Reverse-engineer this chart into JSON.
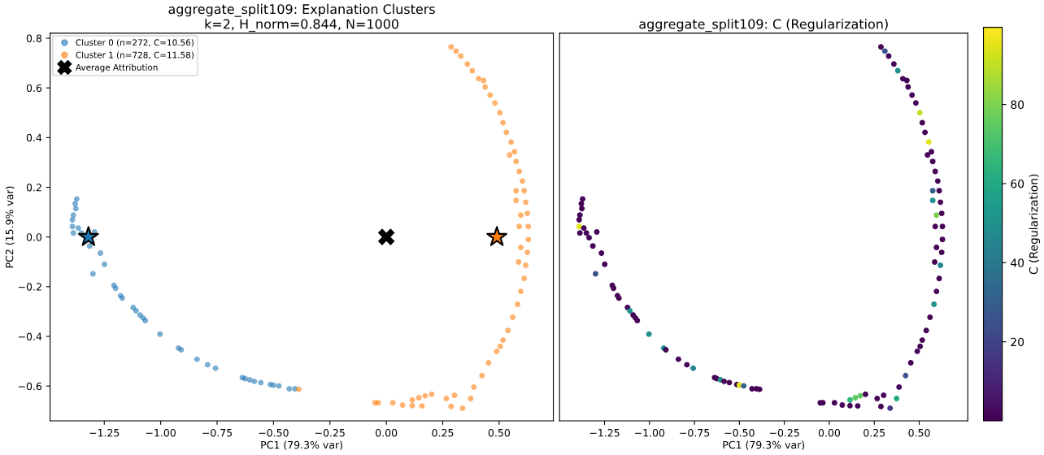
{
  "chart_data": [
    {
      "type": "scatter",
      "title": "aggregate_split109: Explanation Clusters\nk=2, H_norm=0.844, N=1000",
      "xlabel": "PC1 (79.3% var)",
      "ylabel": "PC2 (15.9% var)",
      "xlim": [
        -1.49,
        0.74
      ],
      "ylim": [
        -0.74,
        0.82
      ],
      "xticks": [
        {
          "value": -1.25,
          "label": "−1.25"
        },
        {
          "value": -1.0,
          "label": "−1.00"
        },
        {
          "value": -0.75,
          "label": "−0.75"
        },
        {
          "value": -0.5,
          "label": "−0.50"
        },
        {
          "value": -0.25,
          "label": "−0.25"
        },
        {
          "value": 0.0,
          "label": "0.00"
        },
        {
          "value": 0.25,
          "label": "0.25"
        },
        {
          "value": 0.5,
          "label": "0.50"
        }
      ],
      "yticks": [
        {
          "value": -0.6,
          "label": "−0.6"
        },
        {
          "value": -0.4,
          "label": "−0.4"
        },
        {
          "value": -0.2,
          "label": "−0.2"
        },
        {
          "value": 0.0,
          "label": "0.0"
        },
        0.2,
        0.4,
        0.6,
        0.8
      ],
      "grid": false,
      "legend": "top left",
      "series": [
        {
          "name": "Cluster 0 (n=272, C=10.56)",
          "color": "#1f77b4",
          "marker": "circle",
          "x": [
            -1.372,
            -1.379,
            -1.376,
            -1.387,
            -1.391,
            -1.391,
            -1.387,
            -1.365,
            -1.351,
            -1.336,
            -1.293,
            -1.315,
            -1.267,
            -1.249,
            -1.3,
            -1.207,
            -1.2,
            -1.178,
            -1.17,
            -1.122,
            -1.109,
            -1.091,
            -1.078,
            -1.068,
            -1.003,
            -0.921,
            -0.909,
            -0.839,
            -0.792,
            -0.757,
            -0.638,
            -0.626,
            -0.605,
            -0.585,
            -0.556,
            -0.514,
            -0.5,
            -0.476,
            -0.43,
            -0.405
          ],
          "values": [
            0.153,
            0.134,
            0.114,
            0.088,
            0.069,
            0.042,
            0.016,
            0.036,
            0.016,
            null,
            0.02,
            -0.036,
            -0.065,
            -0.11,
            -0.148,
            -0.195,
            -0.206,
            -0.236,
            -0.246,
            -0.284,
            -0.297,
            -0.314,
            -0.326,
            -0.336,
            -0.391,
            -0.447,
            -0.454,
            -0.492,
            -0.514,
            -0.528,
            -0.566,
            -0.57,
            -0.575,
            -0.581,
            -0.586,
            -0.594,
            -0.596,
            -0.599,
            -0.611,
            -0.611
          ]
        },
        {
          "name": "Cluster 1 (n=728, C=11.58)",
          "color": "#ff7f0e",
          "marker": "circle",
          "x": [
            0.287,
            0.309,
            0.33,
            0.359,
            0.381,
            0.409,
            0.438,
            0.431,
            0.46,
            0.481,
            0.503,
            0.517,
            0.532,
            0.553,
            0.546,
            0.568,
            0.575,
            0.589,
            0.603,
            0.575,
            0.611,
            0.575,
            0.618,
            0.625,
            0.596,
            0.589,
            0.629,
            0.629,
            0.596,
            0.625,
            0.586,
            0.618,
            0.611,
            0.596,
            0.582,
            0.56,
            0.539,
            0.517,
            0.505,
            0.489,
            0.453,
            0.424,
            0.388,
            0.374,
            0.338,
            0.287,
            0.302,
            0.266,
            0.201,
            0.172,
            0.158,
            0.144,
            0.115,
            0.115,
            0.072,
            0.029,
            -0.036,
            -0.05,
            -0.388
          ],
          "values": [
            0.765,
            0.748,
            0.728,
            0.696,
            0.669,
            0.637,
            0.604,
            0.63,
            0.571,
            0.539,
            0.5,
            0.46,
            0.421,
            0.382,
            0.33,
            0.343,
            0.304,
            0.264,
            0.225,
            0.186,
            0.186,
            0.147,
            0.14,
            0.095,
            0.088,
            0.042,
            0.042,
            -0.01,
            -0.042,
            -0.062,
            -0.101,
            -0.114,
            -0.167,
            -0.219,
            -0.271,
            -0.323,
            -0.376,
            -0.415,
            -0.44,
            -0.46,
            -0.506,
            -0.558,
            -0.604,
            -0.65,
            -0.689,
            -0.682,
            -0.637,
            -0.65,
            -0.633,
            -0.639,
            -0.68,
            -0.647,
            -0.656,
            -0.679,
            -0.676,
            -0.667,
            -0.667,
            -0.667,
            -0.613
          ]
        },
        {
          "color": "#1f77b4",
          "marker": "star",
          "x": [
            -1.32
          ],
          "values": [
            0.0
          ]
        },
        {
          "color": "#ff7f0e",
          "marker": "star",
          "x": [
            0.49
          ],
          "values": [
            0.0
          ]
        },
        {
          "name": "Average Attribution",
          "color": "#000000",
          "marker": "cross",
          "x": [
            0.0
          ],
          "values": [
            0.0
          ]
        }
      ]
    },
    {
      "type": "scatter",
      "title": "aggregate_split109: C (Regularization)",
      "xlabel": "PC1 (79.3% var)",
      "clabel": "C (Regularization)",
      "xlim": [
        -1.5,
        0.77
      ],
      "ylim": [
        -0.74,
        0.82
      ],
      "tick_labels": "x",
      "grid": false,
      "xticks": [
        {
          "value": -1.25,
          "label": "−1.25"
        },
        {
          "value": -1.0,
          "label": "−1.00"
        },
        {
          "value": -0.75,
          "label": "−0.75"
        },
        {
          "value": -0.5,
          "label": "−0.50"
        },
        {
          "value": -0.25,
          "label": "−0.25"
        },
        {
          "value": 0.0,
          "label": "0.00"
        },
        {
          "value": 0.25,
          "label": "0.25"
        },
        {
          "value": 0.5,
          "label": "0.50"
        }
      ],
      "clim": [
        0.01,
        99.5
      ],
      "cticks": [
        20,
        40,
        60,
        80
      ],
      "series": [
        {
          "x": [
            -1.372,
            -1.379,
            -1.376,
            -1.387,
            -1.391,
            -1.391,
            -1.387,
            -1.365,
            -1.351,
            -1.336,
            -1.293,
            -1.315,
            -1.267,
            -1.249,
            -1.3,
            -1.207,
            -1.2,
            -1.178,
            -1.17,
            -1.122,
            -1.109,
            -1.091,
            -1.078,
            -1.068,
            -1.003,
            -0.921,
            -0.909,
            -0.839,
            -0.792,
            -0.757,
            -0.638,
            -0.626,
            -0.605,
            -0.585,
            -0.556,
            -0.514,
            -0.5,
            -0.476,
            -0.43,
            -0.405,
            0.287,
            0.309,
            0.33,
            0.359,
            0.381,
            0.409,
            0.438,
            0.431,
            0.46,
            0.481,
            0.503,
            0.517,
            0.532,
            0.553,
            0.546,
            0.568,
            0.575,
            0.589,
            0.603,
            0.575,
            0.611,
            0.575,
            0.618,
            0.625,
            0.596,
            0.589,
            0.629,
            0.629,
            0.596,
            0.625,
            0.586,
            0.618,
            0.611,
            0.596,
            0.582,
            0.56,
            0.539,
            0.517,
            0.505,
            0.489,
            0.453,
            0.424,
            0.388,
            0.374,
            0.338,
            0.287,
            0.302,
            0.266,
            0.201,
            0.172,
            0.158,
            0.144,
            0.115,
            0.115,
            0.072,
            0.029,
            -0.036,
            -0.05,
            -0.388
          ],
          "values": [
            0.153,
            0.134,
            0.114,
            0.088,
            0.069,
            0.042,
            0.016,
            0.036,
            0.016,
            -0.003,
            0.02,
            -0.036,
            -0.065,
            -0.11,
            -0.148,
            -0.195,
            -0.206,
            -0.236,
            -0.246,
            -0.284,
            -0.297,
            -0.314,
            -0.326,
            -0.336,
            -0.391,
            -0.447,
            -0.454,
            -0.492,
            -0.514,
            -0.528,
            -0.566,
            -0.57,
            -0.575,
            -0.581,
            -0.586,
            -0.594,
            -0.596,
            -0.599,
            -0.611,
            -0.611,
            0.765,
            0.748,
            0.728,
            0.696,
            0.669,
            0.637,
            0.604,
            0.63,
            0.571,
            0.539,
            0.5,
            0.46,
            0.421,
            0.382,
            0.33,
            0.343,
            0.304,
            0.264,
            0.225,
            0.186,
            0.186,
            0.147,
            0.14,
            0.095,
            0.088,
            0.042,
            0.042,
            -0.01,
            -0.042,
            -0.062,
            -0.101,
            -0.114,
            -0.167,
            -0.219,
            -0.271,
            -0.323,
            -0.376,
            -0.415,
            -0.44,
            -0.46,
            -0.506,
            -0.558,
            -0.604,
            -0.65,
            -0.689,
            -0.682,
            -0.637,
            -0.65,
            -0.633,
            -0.639,
            -0.68,
            -0.647,
            -0.656,
            -0.679,
            -0.676,
            -0.667,
            -0.667,
            -0.667,
            -0.613
          ],
          "cvalues": [
            1,
            1,
            1,
            1,
            1,
            95,
            1,
            1,
            1,
            1,
            1,
            1,
            1,
            1,
            25,
            1,
            1,
            1,
            1,
            1,
            50,
            1,
            1,
            1,
            50,
            50,
            1,
            1,
            1,
            45,
            1,
            1,
            50,
            1,
            1,
            1,
            95,
            30,
            1,
            1,
            1,
            25,
            1,
            1,
            50,
            1,
            1,
            1,
            1,
            1,
            90,
            1,
            1,
            95,
            1,
            1,
            1,
            1,
            1,
            30,
            1,
            50,
            1,
            1,
            80,
            1,
            1,
            1,
            1,
            1,
            1,
            45,
            1,
            1,
            50,
            1,
            1,
            1,
            1,
            1,
            1,
            25,
            1,
            60,
            15,
            1,
            1,
            1,
            1,
            75,
            1,
            75,
            65,
            1,
            1,
            1,
            1,
            1,
            1
          ]
        }
      ]
    }
  ]
}
